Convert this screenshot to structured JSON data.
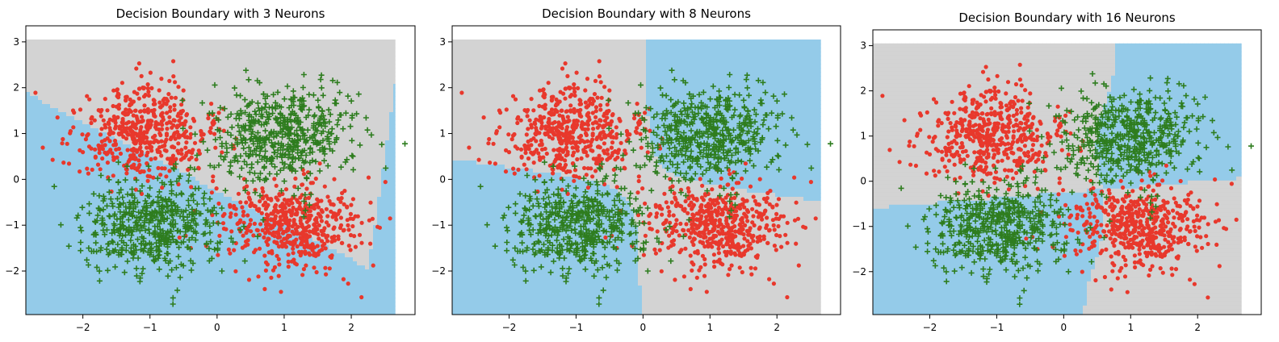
{
  "colors": {
    "class_a_region": "#94cbe9",
    "class_b_region": "#d3d3d3",
    "red_points": "#e8382c",
    "green_points": "#2e7d1f",
    "background": "#ffffff"
  },
  "chart_data": [
    {
      "type": "scatter",
      "title": "Decision Boundary with 3 Neurons",
      "xlim": [
        -2.85,
        2.95
      ],
      "ylim": [
        -2.95,
        3.35
      ],
      "xticks": [
        "−2",
        "−1",
        "0",
        "1",
        "2"
      ],
      "yticks": [
        "3",
        "2",
        "1",
        "0",
        "−1",
        "−2"
      ],
      "boundary": "diagonal band: light-blue region at lower-left and right edge, gray elsewhere",
      "series": [
        {
          "marker": "circle",
          "clusters": [
            {
              "center": [
                -1.1,
                1.0
              ]
            },
            {
              "center": [
                1.1,
                -1.0
              ]
            }
          ]
        },
        {
          "marker": "plus",
          "clusters": [
            {
              "center": [
                1.0,
                1.0
              ]
            },
            {
              "center": [
                -1.0,
                -1.0
              ]
            }
          ]
        }
      ]
    },
    {
      "type": "scatter",
      "title": "Decision Boundary with 8 Neurons",
      "xlim": [
        -2.85,
        2.95
      ],
      "ylim": [
        -2.95,
        3.35
      ],
      "xticks": [
        "−2",
        "−1",
        "0",
        "1",
        "2"
      ],
      "yticks": [
        "3",
        "2",
        "1",
        "0",
        "−1",
        "−2"
      ],
      "boundary": "curved XOR-like boundary: blue at top-right and bottom-left",
      "series": [
        {
          "marker": "circle",
          "clusters": [
            {
              "center": [
                -1.1,
                1.0
              ]
            },
            {
              "center": [
                1.1,
                -1.0
              ]
            }
          ]
        },
        {
          "marker": "plus",
          "clusters": [
            {
              "center": [
                1.0,
                1.0
              ]
            },
            {
              "center": [
                -1.0,
                -1.0
              ]
            }
          ]
        }
      ]
    },
    {
      "type": "scatter",
      "title": "Decision Boundary with 16 Neurons",
      "xlim": [
        -2.85,
        2.95
      ],
      "ylim": [
        -2.95,
        3.35
      ],
      "xticks": [
        "−2",
        "−1",
        "0",
        "1",
        "2"
      ],
      "yticks": [
        "3",
        "2",
        "1",
        "0",
        "−1",
        "−2"
      ],
      "boundary": "XOR quadrants: blue in top-right and bottom-left quadrants",
      "series": [
        {
          "marker": "circle",
          "clusters": [
            {
              "center": [
                -1.1,
                1.0
              ]
            },
            {
              "center": [
                1.1,
                -1.0
              ]
            }
          ]
        },
        {
          "marker": "plus",
          "clusters": [
            {
              "center": [
                1.0,
                1.0
              ]
            },
            {
              "center": [
                -1.0,
                -1.0
              ]
            }
          ]
        }
      ]
    }
  ]
}
